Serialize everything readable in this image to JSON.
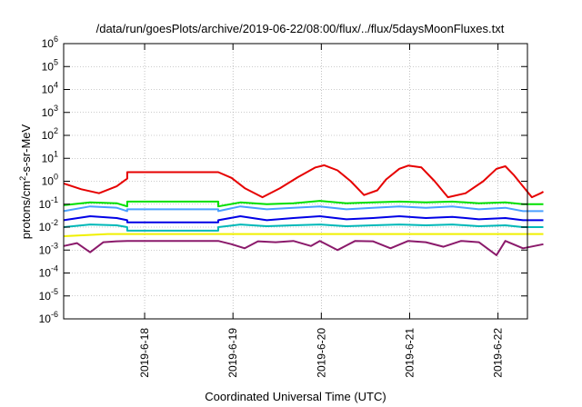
{
  "chart_data": {
    "type": "line",
    "title": "/data/run/goesPlots/archive/2019-06-22/08:00/flux/../flux/5daysMoonFluxes.txt",
    "xlabel": "Coordinated Universal Time (UTC)",
    "ylabel_parts": [
      "protons/cm",
      "2",
      "-s-sr-MeV"
    ],
    "yscale": "log",
    "ylim_exp": [
      -6,
      6
    ],
    "y_ticks": [
      {
        "base": "10",
        "exp": "-6"
      },
      {
        "base": "10",
        "exp": "-5"
      },
      {
        "base": "10",
        "exp": "-4"
      },
      {
        "base": "10",
        "exp": "-3"
      },
      {
        "base": "10",
        "exp": "-2"
      },
      {
        "base": "10",
        "exp": "-1"
      },
      {
        "base": "10",
        "exp": "0"
      },
      {
        "base": "10",
        "exp": "1"
      },
      {
        "base": "10",
        "exp": "2"
      },
      {
        "base": "10",
        "exp": "3"
      },
      {
        "base": "10",
        "exp": "4"
      },
      {
        "base": "10",
        "exp": "5"
      },
      {
        "base": "10",
        "exp": "6"
      }
    ],
    "x_start": "2019-06-17T02:00",
    "x_end": "2019-06-22T08:00",
    "x_ticks": [
      "2019-6-18",
      "2019-6-19",
      "2019-6-20",
      "2019-6-21",
      "2019-6-22"
    ],
    "grid": true,
    "series": [
      {
        "color": "#e60000",
        "values": [
          [
            0.0,
            0.8
          ],
          [
            0.2,
            0.45
          ],
          [
            0.4,
            0.3
          ],
          [
            0.6,
            0.6
          ],
          [
            0.72,
            1.3
          ],
          [
            0.72,
            2.5
          ],
          [
            1.75,
            2.5
          ],
          [
            1.9,
            1.4
          ],
          [
            2.05,
            0.5
          ],
          [
            2.25,
            0.2
          ],
          [
            2.45,
            0.5
          ],
          [
            2.65,
            1.5
          ],
          [
            2.85,
            4.0
          ],
          [
            2.95,
            5.0
          ],
          [
            3.1,
            3.0
          ],
          [
            3.25,
            1.0
          ],
          [
            3.4,
            0.25
          ],
          [
            3.55,
            0.4
          ],
          [
            3.65,
            1.2
          ],
          [
            3.8,
            3.5
          ],
          [
            3.9,
            4.8
          ],
          [
            4.05,
            4.0
          ],
          [
            4.2,
            1.0
          ],
          [
            4.35,
            0.2
          ],
          [
            4.55,
            0.3
          ],
          [
            4.75,
            1.0
          ],
          [
            4.9,
            3.5
          ],
          [
            5.0,
            4.5
          ],
          [
            5.1,
            1.8
          ],
          [
            5.2,
            0.6
          ],
          [
            5.3,
            0.2
          ],
          [
            5.4,
            0.3
          ],
          [
            5.43,
            0.35
          ]
        ]
      },
      {
        "color": "#00e000",
        "values": [
          [
            0.0,
            0.09
          ],
          [
            0.3,
            0.12
          ],
          [
            0.6,
            0.11
          ],
          [
            0.72,
            0.08
          ],
          [
            0.72,
            0.13
          ],
          [
            1.75,
            0.13
          ],
          [
            1.75,
            0.08
          ],
          [
            2.0,
            0.12
          ],
          [
            2.3,
            0.1
          ],
          [
            2.6,
            0.11
          ],
          [
            2.9,
            0.14
          ],
          [
            3.2,
            0.11
          ],
          [
            3.5,
            0.12
          ],
          [
            3.8,
            0.13
          ],
          [
            4.1,
            0.12
          ],
          [
            4.4,
            0.13
          ],
          [
            4.7,
            0.11
          ],
          [
            5.0,
            0.12
          ],
          [
            5.2,
            0.1
          ],
          [
            5.43,
            0.1
          ]
        ]
      },
      {
        "color": "#4aa0ff",
        "values": [
          [
            0.0,
            0.05
          ],
          [
            0.3,
            0.08
          ],
          [
            0.6,
            0.07
          ],
          [
            0.72,
            0.05
          ],
          [
            0.72,
            0.06
          ],
          [
            1.75,
            0.06
          ],
          [
            1.75,
            0.05
          ],
          [
            2.0,
            0.08
          ],
          [
            2.3,
            0.06
          ],
          [
            2.6,
            0.07
          ],
          [
            2.9,
            0.08
          ],
          [
            3.2,
            0.06
          ],
          [
            3.5,
            0.07
          ],
          [
            3.8,
            0.08
          ],
          [
            4.1,
            0.07
          ],
          [
            4.4,
            0.08
          ],
          [
            4.7,
            0.06
          ],
          [
            5.0,
            0.07
          ],
          [
            5.2,
            0.05
          ],
          [
            5.43,
            0.05
          ]
        ]
      },
      {
        "color": "#0000e6",
        "values": [
          [
            0.0,
            0.02
          ],
          [
            0.3,
            0.03
          ],
          [
            0.6,
            0.025
          ],
          [
            0.72,
            0.02
          ],
          [
            0.72,
            0.016
          ],
          [
            1.75,
            0.016
          ],
          [
            1.75,
            0.02
          ],
          [
            2.0,
            0.03
          ],
          [
            2.3,
            0.02
          ],
          [
            2.6,
            0.025
          ],
          [
            2.9,
            0.03
          ],
          [
            3.2,
            0.022
          ],
          [
            3.5,
            0.025
          ],
          [
            3.8,
            0.03
          ],
          [
            4.1,
            0.025
          ],
          [
            4.4,
            0.028
          ],
          [
            4.7,
            0.022
          ],
          [
            5.0,
            0.025
          ],
          [
            5.2,
            0.02
          ],
          [
            5.43,
            0.02
          ]
        ]
      },
      {
        "color": "#00b8b8",
        "values": [
          [
            0.0,
            0.01
          ],
          [
            0.3,
            0.013
          ],
          [
            0.6,
            0.012
          ],
          [
            0.72,
            0.01
          ],
          [
            0.72,
            0.007
          ],
          [
            1.75,
            0.007
          ],
          [
            1.75,
            0.01
          ],
          [
            2.0,
            0.013
          ],
          [
            2.3,
            0.011
          ],
          [
            2.6,
            0.012
          ],
          [
            2.9,
            0.013
          ],
          [
            3.2,
            0.011
          ],
          [
            3.5,
            0.012
          ],
          [
            3.8,
            0.013
          ],
          [
            4.1,
            0.012
          ],
          [
            4.4,
            0.013
          ],
          [
            4.7,
            0.011
          ],
          [
            5.0,
            0.012
          ],
          [
            5.2,
            0.01
          ],
          [
            5.43,
            0.01
          ]
        ]
      },
      {
        "color": "#f0f000",
        "values": [
          [
            0.0,
            0.004
          ],
          [
            0.5,
            0.005
          ],
          [
            0.72,
            0.005
          ],
          [
            1.75,
            0.005
          ],
          [
            2.0,
            0.005
          ],
          [
            2.5,
            0.005
          ],
          [
            3.0,
            0.005
          ],
          [
            3.5,
            0.005
          ],
          [
            4.0,
            0.005
          ],
          [
            4.5,
            0.005
          ],
          [
            5.0,
            0.005
          ],
          [
            5.43,
            0.005
          ]
        ]
      },
      {
        "color": "#8b1a6b",
        "values": [
          [
            0.0,
            0.0015
          ],
          [
            0.15,
            0.002
          ],
          [
            0.3,
            0.0008
          ],
          [
            0.45,
            0.0022
          ],
          [
            0.6,
            0.0024
          ],
          [
            0.72,
            0.0025
          ],
          [
            1.75,
            0.0025
          ],
          [
            1.9,
            0.0018
          ],
          [
            2.05,
            0.0012
          ],
          [
            2.2,
            0.0024
          ],
          [
            2.4,
            0.0022
          ],
          [
            2.6,
            0.0025
          ],
          [
            2.8,
            0.0015
          ],
          [
            2.9,
            0.0025
          ],
          [
            3.1,
            0.001
          ],
          [
            3.3,
            0.0025
          ],
          [
            3.5,
            0.0024
          ],
          [
            3.7,
            0.0012
          ],
          [
            3.9,
            0.0025
          ],
          [
            4.1,
            0.0022
          ],
          [
            4.3,
            0.0014
          ],
          [
            4.5,
            0.0025
          ],
          [
            4.7,
            0.0022
          ],
          [
            4.9,
            0.0006
          ],
          [
            5.0,
            0.0025
          ],
          [
            5.2,
            0.0012
          ],
          [
            5.43,
            0.0018
          ]
        ]
      }
    ]
  }
}
